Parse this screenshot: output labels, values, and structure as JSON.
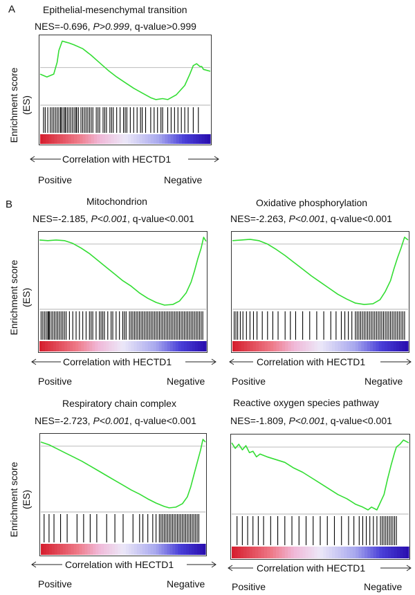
{
  "panel_letters": {
    "a": "A",
    "b": "B"
  },
  "y_axis_label_line1": "Enrichment score",
  "y_axis_label_line2": "(ES)",
  "arrow_label": "Correlation with HECTD1",
  "positive_label": "Positive",
  "negative_label": "Negative",
  "colors": {
    "curve": "#33dd33",
    "hits": "#000000",
    "gradient_pos": "#d62030",
    "gradient_neg": "#2a10b0"
  },
  "chart_data": [
    {
      "type": "line",
      "panel": "A",
      "title": "Epithelial-mesenchymal transition",
      "stats": {
        "nes": "NES=-0.696, ",
        "p": "P>0.999",
        "q": ", q-value>0.999"
      },
      "x": [
        0,
        0.04,
        0.08,
        0.1,
        0.11,
        0.13,
        0.15,
        0.17,
        0.2,
        0.25,
        0.3,
        0.35,
        0.4,
        0.45,
        0.5,
        0.55,
        0.6,
        0.65,
        0.68,
        0.72,
        0.75,
        0.8,
        0.85,
        0.88,
        0.9,
        0.92,
        0.94,
        0.95,
        0.96,
        1.0
      ],
      "es": [
        0.3,
        0.24,
        0.3,
        0.55,
        0.8,
        1.0,
        0.98,
        0.96,
        0.92,
        0.84,
        0.7,
        0.54,
        0.38,
        0.24,
        0.12,
        0.0,
        -0.1,
        -0.2,
        -0.24,
        -0.22,
        -0.24,
        -0.14,
        0.06,
        0.3,
        0.48,
        0.52,
        0.46,
        0.46,
        0.4,
        0.36
      ],
      "ylim": [
        -0.3,
        1.05
      ],
      "zero": 0.44,
      "hits": [
        0.02,
        0.03,
        0.045,
        0.06,
        0.07,
        0.08,
        0.09,
        0.1,
        0.11,
        0.12,
        0.125,
        0.135,
        0.145,
        0.15,
        0.16,
        0.17,
        0.18,
        0.19,
        0.2,
        0.21,
        0.215,
        0.225,
        0.24,
        0.25,
        0.26,
        0.27,
        0.28,
        0.29,
        0.3,
        0.31,
        0.33,
        0.34,
        0.35,
        0.37,
        0.38,
        0.39,
        0.41,
        0.42,
        0.43,
        0.45,
        0.47,
        0.49,
        0.5,
        0.51,
        0.53,
        0.55,
        0.57,
        0.59,
        0.6,
        0.62,
        0.65,
        0.67,
        0.69,
        0.71,
        0.72,
        0.75,
        0.77,
        0.79,
        0.81,
        0.83,
        0.85,
        0.87,
        0.9,
        0.93
      ]
    },
    {
      "type": "line",
      "panel": "B1",
      "title": "Mitochondrion",
      "stats": {
        "nes": "NES=-2.185, ",
        "p": "P<0.001",
        "q": ", q-value<0.001"
      },
      "x": [
        0,
        0.05,
        0.1,
        0.15,
        0.2,
        0.25,
        0.3,
        0.35,
        0.4,
        0.45,
        0.5,
        0.55,
        0.6,
        0.65,
        0.7,
        0.75,
        0.8,
        0.84,
        0.88,
        0.91,
        0.93,
        0.95,
        0.97,
        0.985,
        1.0
      ],
      "es": [
        0.98,
        0.97,
        0.98,
        0.97,
        0.93,
        0.86,
        0.78,
        0.68,
        0.58,
        0.48,
        0.38,
        0.3,
        0.2,
        0.12,
        0.06,
        0.02,
        0.03,
        0.08,
        0.2,
        0.36,
        0.52,
        0.7,
        0.86,
        1.02,
        0.96
      ],
      "ylim": [
        0,
        1.05
      ],
      "zero": 0.92,
      "hits": [
        0.01,
        0.02,
        0.03,
        0.04,
        0.05,
        0.055,
        0.06,
        0.07,
        0.08,
        0.09,
        0.1,
        0.11,
        0.12,
        0.13,
        0.14,
        0.15,
        0.16,
        0.18,
        0.2,
        0.22,
        0.24,
        0.26,
        0.28,
        0.3,
        0.31,
        0.32,
        0.34,
        0.36,
        0.37,
        0.38,
        0.39,
        0.41,
        0.43,
        0.44,
        0.46,
        0.48,
        0.5,
        0.51,
        0.52,
        0.54,
        0.55,
        0.56,
        0.57,
        0.58,
        0.59,
        0.6,
        0.61,
        0.62,
        0.63,
        0.64,
        0.65,
        0.66,
        0.67,
        0.68,
        0.69,
        0.7,
        0.71,
        0.72,
        0.73,
        0.74,
        0.75,
        0.76,
        0.77,
        0.78,
        0.79,
        0.8,
        0.81,
        0.82,
        0.83,
        0.84,
        0.85,
        0.86,
        0.87,
        0.88,
        0.89,
        0.9,
        0.91,
        0.92,
        0.93,
        0.94,
        0.95,
        0.96,
        0.97,
        0.98
      ]
    },
    {
      "type": "line",
      "panel": "B2",
      "title": "Oxidative phosphorylation",
      "stats": {
        "nes": "NES=-2.263, ",
        "p": "P<0.001",
        "q": ", q-value<0.001"
      },
      "x": [
        0,
        0.05,
        0.1,
        0.15,
        0.2,
        0.25,
        0.3,
        0.35,
        0.4,
        0.45,
        0.5,
        0.55,
        0.6,
        0.65,
        0.7,
        0.75,
        0.8,
        0.84,
        0.87,
        0.9,
        0.92,
        0.94,
        0.96,
        0.98,
        1.0
      ],
      "es": [
        0.97,
        0.98,
        0.99,
        0.97,
        0.92,
        0.84,
        0.75,
        0.65,
        0.55,
        0.45,
        0.36,
        0.27,
        0.18,
        0.11,
        0.05,
        0.03,
        0.04,
        0.1,
        0.22,
        0.38,
        0.56,
        0.72,
        0.86,
        1.02,
        0.98
      ],
      "ylim": [
        0,
        1.05
      ],
      "zero": 0.92,
      "hits": [
        0.01,
        0.02,
        0.03,
        0.045,
        0.06,
        0.08,
        0.1,
        0.12,
        0.14,
        0.17,
        0.2,
        0.23,
        0.26,
        0.3,
        0.33,
        0.36,
        0.4,
        0.44,
        0.48,
        0.52,
        0.56,
        0.59,
        0.62,
        0.64,
        0.66,
        0.68,
        0.7,
        0.71,
        0.72,
        0.73,
        0.74,
        0.75,
        0.76,
        0.77,
        0.78,
        0.79,
        0.8,
        0.81,
        0.82,
        0.83,
        0.84,
        0.85,
        0.86,
        0.87,
        0.88,
        0.89,
        0.9,
        0.91,
        0.92,
        0.93,
        0.94,
        0.95,
        0.96,
        0.97,
        0.98
      ]
    },
    {
      "type": "line",
      "panel": "B3",
      "title": "Respiratory chain complex",
      "stats": {
        "nes": "NES=-2.723, ",
        "p": "P<0.001",
        "q": ", q-value<0.001"
      },
      "x": [
        0,
        0.05,
        0.1,
        0.15,
        0.2,
        0.25,
        0.3,
        0.35,
        0.4,
        0.45,
        0.5,
        0.55,
        0.6,
        0.65,
        0.7,
        0.75,
        0.78,
        0.82,
        0.86,
        0.89,
        0.91,
        0.93,
        0.95,
        0.97,
        0.985,
        1.0
      ],
      "es": [
        0.98,
        0.94,
        0.88,
        0.82,
        0.76,
        0.7,
        0.63,
        0.56,
        0.49,
        0.42,
        0.35,
        0.28,
        0.22,
        0.15,
        0.09,
        0.04,
        0.02,
        0.03,
        0.08,
        0.18,
        0.32,
        0.5,
        0.68,
        0.86,
        1.02,
        0.98
      ],
      "ylim": [
        0,
        1.05
      ],
      "zero": 0.92,
      "hits": [
        0.02,
        0.05,
        0.08,
        0.12,
        0.16,
        0.22,
        0.26,
        0.3,
        0.34,
        0.4,
        0.45,
        0.5,
        0.56,
        0.6,
        0.62,
        0.65,
        0.68,
        0.7,
        0.72,
        0.73,
        0.74,
        0.75,
        0.76,
        0.77,
        0.78,
        0.79,
        0.8,
        0.81,
        0.82,
        0.83,
        0.84,
        0.85,
        0.86,
        0.87,
        0.88,
        0.89,
        0.9,
        0.91,
        0.92,
        0.93,
        0.94,
        0.95,
        0.96
      ]
    },
    {
      "type": "line",
      "panel": "B4",
      "title": "Reactive oxygen species pathway",
      "stats": {
        "nes": "NES=-1.809, ",
        "p": "P<0.001",
        "q": ", q-value<0.001"
      },
      "x": [
        0,
        0.02,
        0.04,
        0.06,
        0.08,
        0.1,
        0.12,
        0.14,
        0.16,
        0.2,
        0.25,
        0.3,
        0.35,
        0.4,
        0.45,
        0.5,
        0.55,
        0.6,
        0.65,
        0.7,
        0.74,
        0.77,
        0.79,
        0.82,
        0.86,
        0.88,
        0.9,
        0.92,
        0.93,
        0.95,
        0.97,
        1.0
      ],
      "es": [
        0.98,
        0.9,
        0.96,
        0.88,
        0.94,
        0.84,
        0.86,
        0.78,
        0.82,
        0.78,
        0.74,
        0.7,
        0.62,
        0.56,
        0.48,
        0.4,
        0.32,
        0.24,
        0.18,
        0.1,
        0.06,
        0.02,
        0.06,
        0.02,
        0.24,
        0.46,
        0.66,
        0.84,
        0.92,
        0.96,
        1.02,
        0.98
      ],
      "ylim": [
        0,
        1.05
      ],
      "zero": 0.92,
      "hits": [
        0.03,
        0.06,
        0.09,
        0.12,
        0.15,
        0.18,
        0.22,
        0.26,
        0.3,
        0.34,
        0.38,
        0.42,
        0.46,
        0.5,
        0.54,
        0.58,
        0.62,
        0.66,
        0.69,
        0.72,
        0.74,
        0.76,
        0.78,
        0.8,
        0.82,
        0.84,
        0.85,
        0.86,
        0.87,
        0.88,
        0.89,
        0.9,
        0.91,
        0.92,
        0.93
      ]
    }
  ]
}
